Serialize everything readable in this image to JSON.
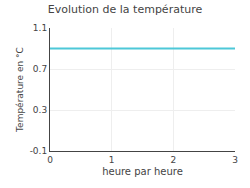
{
  "chart_data": {
    "type": "line",
    "title": "Evolution de la température",
    "xlabel": "heure par heure",
    "ylabel": "Température en °C",
    "x": [
      0,
      3
    ],
    "series": [
      {
        "color": "#4dc8d8",
        "values": [
          0.9,
          0.9
        ]
      }
    ],
    "xlim": [
      0,
      3
    ],
    "xticks": [
      0,
      1,
      2,
      3
    ],
    "ylim": [
      -0.1,
      1.1
    ],
    "yticks": [
      -0.1,
      0.3,
      0.7,
      1.1
    ],
    "grid": true
  }
}
